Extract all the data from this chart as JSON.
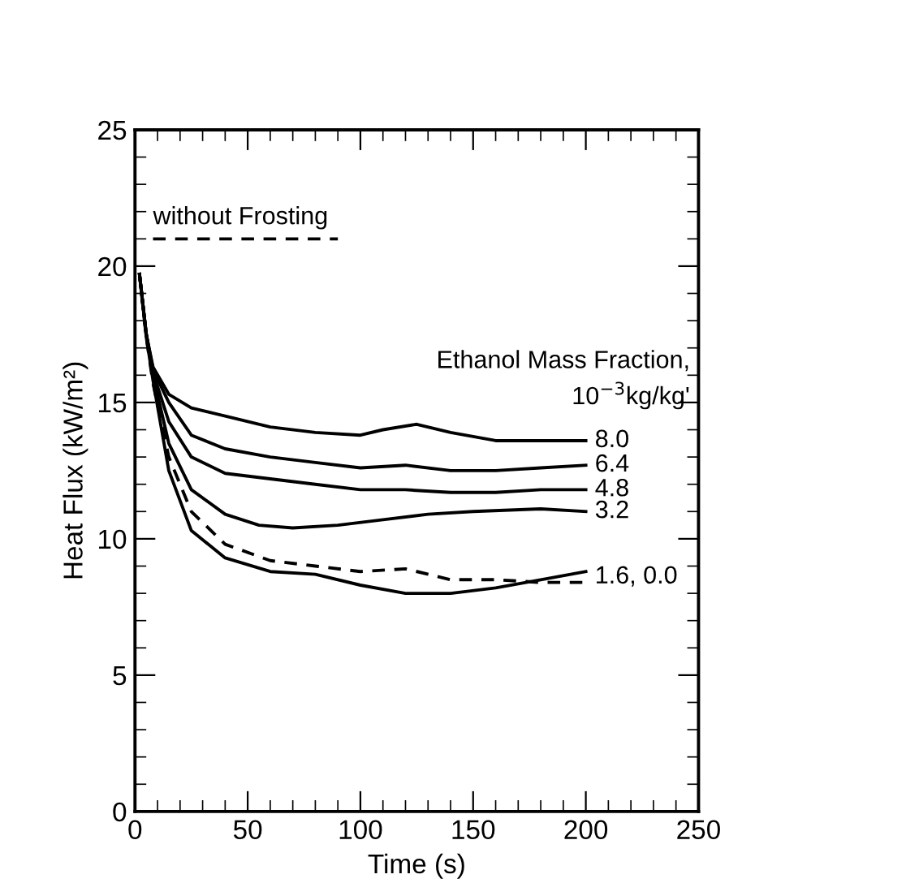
{
  "chart_data": {
    "type": "line",
    "xlabel": "Time (s)",
    "ylabel": "Heat Flux (kW/m²)",
    "xlim": [
      0,
      250
    ],
    "ylim": [
      0,
      25
    ],
    "xticks": [
      0,
      50,
      100,
      150,
      200,
      250,
      {
        "value": 10,
        "label": null
      },
      {
        "value": 20,
        "label": null
      },
      {
        "value": 30,
        "label": null
      },
      {
        "value": 40,
        "label": null
      },
      {
        "value": 60,
        "label": null
      },
      {
        "value": 70,
        "label": null
      },
      {
        "value": 80,
        "label": null
      },
      {
        "value": 90,
        "label": null
      },
      {
        "value": 110,
        "label": null
      },
      {
        "value": 120,
        "label": null
      },
      {
        "value": 130,
        "label": null
      },
      {
        "value": 140,
        "label": null
      },
      {
        "value": 160,
        "label": null
      },
      {
        "value": 170,
        "label": null
      },
      {
        "value": 180,
        "label": null
      },
      {
        "value": 190,
        "label": null
      },
      {
        "value": 210,
        "label": null
      },
      {
        "value": 220,
        "label": null
      },
      {
        "value": 230,
        "label": null
      },
      {
        "value": 240,
        "label": null
      }
    ],
    "yticks": [
      0,
      5,
      10,
      15,
      20,
      25,
      {
        "value": 1,
        "label": null
      },
      {
        "value": 2,
        "label": null
      },
      {
        "value": 3,
        "label": null
      },
      {
        "value": 4,
        "label": null
      },
      {
        "value": 6,
        "label": null
      },
      {
        "value": 7,
        "label": null
      },
      {
        "value": 8,
        "label": null
      },
      {
        "value": 9,
        "label": null
      },
      {
        "value": 11,
        "label": null
      },
      {
        "value": 12,
        "label": null
      },
      {
        "value": 13,
        "label": null
      },
      {
        "value": 14,
        "label": null
      },
      {
        "value": 16,
        "label": null
      },
      {
        "value": 17,
        "label": null
      },
      {
        "value": 18,
        "label": null
      },
      {
        "value": 19,
        "label": null
      },
      {
        "value": 21,
        "label": null
      },
      {
        "value": 22,
        "label": null
      },
      {
        "value": 23,
        "label": null
      },
      {
        "value": 24,
        "label": null
      }
    ],
    "grid": false,
    "legend": "right",
    "marker": "none",
    "series": [
      {
        "name": "without Frosting",
        "color": "#000000",
        "line_style": "dashed",
        "x": [
          8,
          90
        ],
        "values": [
          21,
          21
        ]
      },
      {
        "name": "8.0",
        "color": "#000000",
        "line_style": "solid",
        "x": [
          2,
          5,
          8,
          15,
          25,
          40,
          60,
          80,
          100,
          110,
          125,
          140,
          160,
          180,
          200
        ],
        "values": [
          19.7,
          17.5,
          16.3,
          15.3,
          14.8,
          14.5,
          14.1,
          13.9,
          13.8,
          14.0,
          14.2,
          13.9,
          13.6,
          13.6,
          13.6
        ]
      },
      {
        "name": "6.4",
        "color": "#000000",
        "line_style": "solid",
        "x": [
          2,
          5,
          8,
          15,
          25,
          40,
          60,
          80,
          100,
          120,
          140,
          160,
          180,
          200
        ],
        "values": [
          19.7,
          17.5,
          16.2,
          15.0,
          13.8,
          13.3,
          13.0,
          12.8,
          12.6,
          12.7,
          12.5,
          12.5,
          12.6,
          12.7
        ]
      },
      {
        "name": "4.8",
        "color": "#000000",
        "line_style": "solid",
        "x": [
          2,
          5,
          8,
          15,
          25,
          40,
          60,
          80,
          100,
          120,
          140,
          160,
          180,
          200
        ],
        "values": [
          19.7,
          17.5,
          16.1,
          14.3,
          13.0,
          12.4,
          12.2,
          12.0,
          11.8,
          11.8,
          11.7,
          11.7,
          11.8,
          11.8
        ]
      },
      {
        "name": "3.2",
        "color": "#000000",
        "line_style": "solid",
        "x": [
          2,
          5,
          8,
          15,
          25,
          40,
          55,
          70,
          90,
          110,
          130,
          150,
          180,
          200
        ],
        "values": [
          19.7,
          17.5,
          16.0,
          13.5,
          11.8,
          10.9,
          10.5,
          10.4,
          10.5,
          10.7,
          10.9,
          11.0,
          11.1,
          11.0
        ]
      },
      {
        "color": "#000000",
        "line_style": "solid",
        "x": [
          2,
          5,
          8,
          15,
          25,
          40,
          60,
          80,
          100,
          120,
          140,
          160,
          180,
          200
        ],
        "values": [
          19.7,
          17.4,
          15.8,
          12.5,
          10.3,
          9.3,
          8.8,
          8.7,
          8.3,
          8.0,
          8.0,
          8.2,
          8.5,
          8.8
        ]
      },
      {
        "color": "#000000",
        "line_style": "dashed",
        "x": [
          2,
          5,
          8,
          15,
          25,
          40,
          60,
          80,
          100,
          120,
          140,
          160,
          180,
          200
        ],
        "values": [
          19.7,
          17.4,
          15.7,
          13.0,
          11.0,
          9.8,
          9.2,
          9.0,
          8.8,
          8.9,
          8.5,
          8.5,
          8.4,
          8.4
        ]
      }
    ],
    "annotations": [
      "Ethanol Mass Fraction,",
      "10$^{−3}$kg/kg'",
      {
        "text": "1.6, 0.0",
        "x": 200,
        "y": 8.6
      }
    ]
  }
}
